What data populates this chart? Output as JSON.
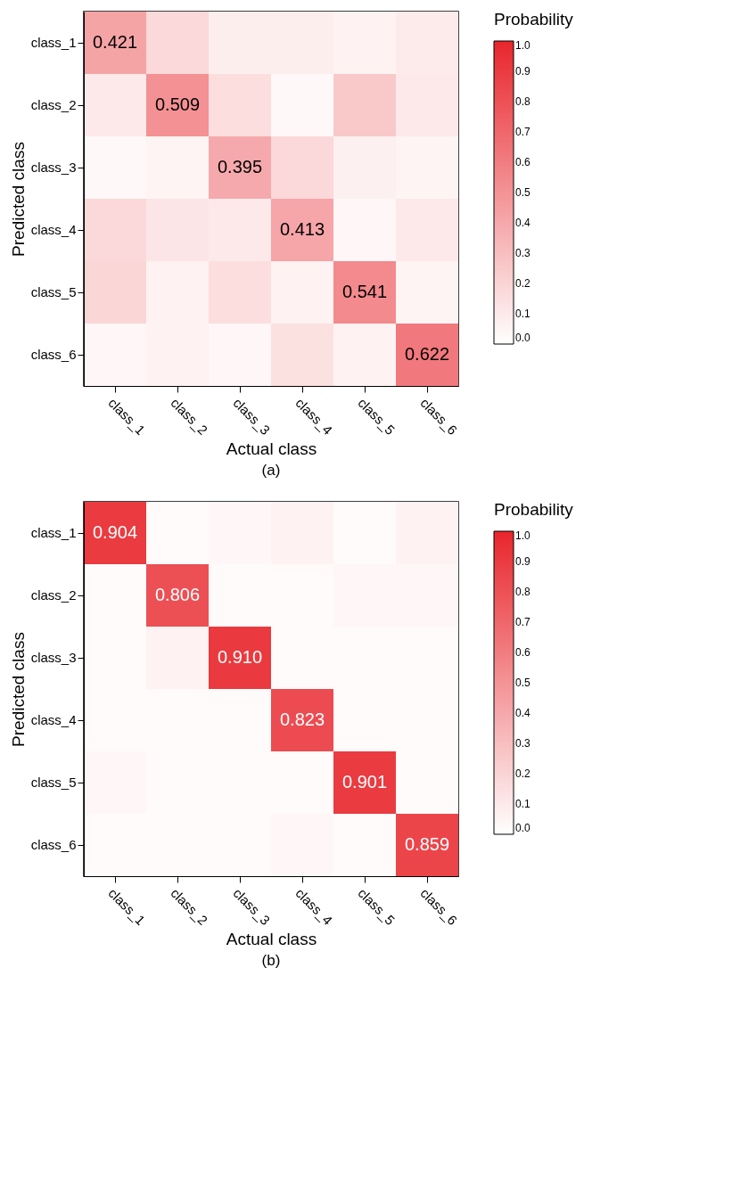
{
  "chart_data": [
    {
      "type": "heatmap",
      "xlabel": "Actual class",
      "ylabel": "Predicted class",
      "legend_title": "Probability",
      "annotations": [
        "(a)"
      ],
      "categories": [
        "class_1",
        "class_2",
        "class_3",
        "class_4",
        "class_5",
        "class_6"
      ],
      "y_categories": [
        "class_1",
        "class_2",
        "class_3",
        "class_4",
        "class_5",
        "class_6"
      ],
      "cells": [
        [
          0.421,
          0.18,
          0.08,
          0.08,
          0.06,
          0.09
        ],
        [
          0.1,
          0.509,
          0.15,
          0.03,
          0.25,
          0.1
        ],
        [
          0.03,
          0.05,
          0.395,
          0.18,
          0.07,
          0.05
        ],
        [
          0.18,
          0.12,
          0.1,
          0.413,
          0.04,
          0.1
        ],
        [
          0.19,
          0.06,
          0.15,
          0.06,
          0.541,
          0.05
        ],
        [
          0.04,
          0.06,
          0.04,
          0.14,
          0.06,
          0.622
        ]
      ],
      "cell_labels": [
        [
          "0.421",
          null,
          null,
          null,
          null,
          null
        ],
        [
          null,
          "0.509",
          null,
          null,
          null,
          null
        ],
        [
          null,
          null,
          "0.395",
          null,
          null,
          null
        ],
        [
          null,
          null,
          null,
          "0.413",
          null,
          null
        ],
        [
          null,
          null,
          null,
          null,
          "0.541",
          null
        ],
        [
          null,
          null,
          null,
          null,
          null,
          "0.622"
        ]
      ],
      "clim": [
        0,
        1
      ],
      "colors": [
        "#ffffff",
        "#e8262c"
      ],
      "cticks": [
        {
          "value": 0,
          "label": "0.0"
        },
        {
          "value": 0.1,
          "label": "0.1"
        },
        {
          "value": 0.2,
          "label": "0.2"
        },
        {
          "value": 0.3,
          "label": "0.3"
        },
        {
          "value": 0.4,
          "label": "0.4"
        },
        {
          "value": 0.5,
          "label": "0.5"
        },
        {
          "value": 0.6,
          "label": "0.6"
        },
        {
          "value": 0.7,
          "label": "0.7"
        },
        {
          "value": 0.8,
          "label": "0.8"
        },
        {
          "value": 0.9,
          "label": "0.9"
        },
        {
          "value": 1,
          "label": "1.0"
        }
      ]
    },
    {
      "type": "heatmap",
      "xlabel": "Actual class",
      "ylabel": "Predicted class",
      "legend_title": "Probability",
      "annotations": [
        "(b)"
      ],
      "categories": [
        "class_1",
        "class_2",
        "class_3",
        "class_4",
        "class_5",
        "class_6"
      ],
      "y_categories": [
        "class_1",
        "class_2",
        "class_3",
        "class_4",
        "class_5",
        "class_6"
      ],
      "cells": [
        [
          0.904,
          0.02,
          0.04,
          0.06,
          0.02,
          0.06
        ],
        [
          0.02,
          0.806,
          0.02,
          0.02,
          0.04,
          0.04
        ],
        [
          0.02,
          0.06,
          0.91,
          0.02,
          0.02,
          0.02
        ],
        [
          0.02,
          0.02,
          0.02,
          0.823,
          0.02,
          0.02
        ],
        [
          0.04,
          0.02,
          0.02,
          0.02,
          0.901,
          0.02
        ],
        [
          0.02,
          0.02,
          0.02,
          0.04,
          0.02,
          0.859
        ]
      ],
      "cell_labels": [
        [
          "0.904",
          null,
          null,
          null,
          null,
          null
        ],
        [
          null,
          "0.806",
          null,
          null,
          null,
          null
        ],
        [
          null,
          null,
          "0.910",
          null,
          null,
          null
        ],
        [
          null,
          null,
          null,
          "0.823",
          null,
          null
        ],
        [
          null,
          null,
          null,
          null,
          "0.901",
          null
        ],
        [
          null,
          null,
          null,
          null,
          null,
          "0.859"
        ]
      ],
      "clim": [
        0,
        1
      ],
      "colors": [
        "#ffffff",
        "#e8262c"
      ],
      "cticks": [
        {
          "value": 0,
          "label": "0.0"
        },
        {
          "value": 0.1,
          "label": "0.1"
        },
        {
          "value": 0.2,
          "label": "0.2"
        },
        {
          "value": 0.3,
          "label": "0.3"
        },
        {
          "value": 0.4,
          "label": "0.4"
        },
        {
          "value": 0.5,
          "label": "0.5"
        },
        {
          "value": 0.6,
          "label": "0.6"
        },
        {
          "value": 0.7,
          "label": "0.7"
        },
        {
          "value": 0.8,
          "label": "0.8"
        },
        {
          "value": 0.9,
          "label": "0.9"
        },
        {
          "value": 1,
          "label": "1.0"
        }
      ]
    }
  ]
}
